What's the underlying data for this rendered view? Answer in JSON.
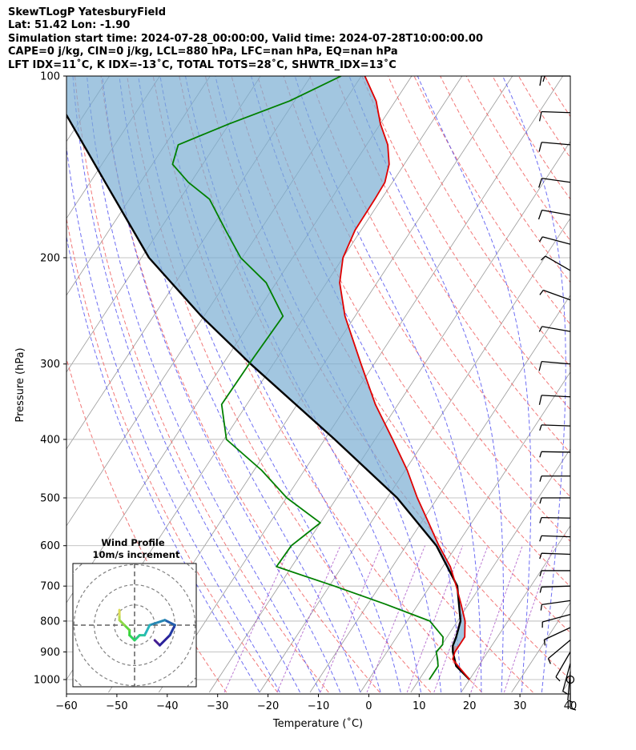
{
  "header": {
    "line1": "SkewTLogP YatesburyField",
    "line2": "Lat: 51.42   Lon: -1.90",
    "line3": "Simulation start time: 2024-07-28_00:00:00, Valid time: 2024-07-28T10:00:00.00",
    "line4": "CAPE=0 j/kg, CIN=0 j/kg, LCL=880 hPa, LFC=nan hPa, EQ=nan hPa",
    "line5": "LFT IDX=11˚C, K IDX=-13˚C, TOTAL TOTS=28˚C, SHWTR_IDX=13˚C"
  },
  "chart_data": {
    "type": "skewt-logp",
    "xlabel": "Temperature (˚C)",
    "ylabel": "Pressure (hPa)",
    "xlim": [
      -60,
      40
    ],
    "ylim": [
      1050,
      100
    ],
    "x_ticks": [
      -60,
      -50,
      -40,
      -30,
      -20,
      -10,
      0,
      10,
      20,
      30,
      40
    ],
    "x_tick_labels": [
      "−60",
      "−50",
      "−40",
      "−30",
      "−20",
      "−10",
      "0",
      "10",
      "20",
      "30",
      "40"
    ],
    "y_ticks": [
      1000,
      900,
      800,
      700,
      600,
      500,
      400,
      300,
      200,
      100
    ],
    "y_tick_labels": [
      "1000",
      "900",
      "800",
      "700",
      "600",
      "500",
      "400",
      "300",
      "200",
      "100"
    ],
    "grid": true,
    "colors": {
      "temperature": "#e00000",
      "dewpoint": "#008000",
      "parcel": "#000000",
      "cape_fill": "#7aaed3",
      "dry_adiabat": "#f06060",
      "moist_adiabat": "#4a4af0",
      "mixing_ratio": "#a040c0",
      "isotherm": "#999999"
    },
    "temperature": {
      "p": [
        1000,
        950,
        925,
        900,
        875,
        850,
        800,
        750,
        700,
        650,
        600,
        550,
        500,
        450,
        400,
        350,
        300,
        250,
        220,
        200,
        180,
        160,
        150,
        140,
        130,
        120,
        110,
        100
      ],
      "t": [
        20,
        16,
        14,
        13.5,
        13.5,
        13.5,
        11.5,
        8.5,
        5.2,
        1.5,
        -3.5,
        -8.5,
        -14,
        -19.6,
        -26.5,
        -34.5,
        -42.6,
        -52,
        -57.4,
        -60,
        -61.2,
        -61.3,
        -61.5,
        -63,
        -65.8,
        -70,
        -73.8,
        -79.3
      ]
    },
    "dewpoint": {
      "p": [
        1000,
        950,
        925,
        900,
        875,
        850,
        800,
        750,
        700,
        650,
        600,
        550,
        500,
        450,
        400,
        350,
        300,
        250,
        220,
        200,
        180,
        160,
        150,
        140,
        130,
        120,
        110,
        100
      ],
      "t": [
        12,
        12,
        11,
        9.8,
        10.1,
        9.2,
        4.5,
        -6.5,
        -19,
        -33,
        -32.8,
        -30,
        -39.9,
        -48.5,
        -59.5,
        -65,
        -64.8,
        -64.3,
        -72,
        -80.3,
        -86.9,
        -94.1,
        -100.5,
        -106,
        -107.4,
        -100,
        -91,
        -84
      ]
    },
    "parcel": {
      "p": [
        1000,
        950,
        900,
        880,
        850,
        800,
        700,
        600,
        500,
        400,
        300,
        250,
        200,
        150,
        100
      ],
      "t": [
        20,
        15.6,
        13.1,
        12.3,
        11.8,
        10.6,
        5.4,
        -4,
        -18,
        -38,
        -64.5,
        -80.5,
        -98.5,
        -117,
        -143
      ]
    },
    "wind_profile": {
      "title": "Wind Profile",
      "subtitle": "10m/s increment",
      "ring_step": 10,
      "u": [
        4,
        5,
        7,
        8,
        6,
        3,
        2,
        1,
        0,
        -1,
        -1,
        -2,
        -3,
        -3,
        -3
      ],
      "v": [
        -3,
        -4,
        -2,
        0,
        1,
        0,
        -2,
        -2,
        -3,
        -2,
        -1,
        0,
        1,
        2,
        3
      ]
    },
    "wind_barbs": {
      "p": [
        1000,
        970,
        940,
        900,
        860,
        820,
        780,
        740,
        700,
        660,
        620,
        580,
        540,
        500,
        460,
        420,
        380,
        340,
        300,
        265,
        235,
        210,
        190,
        170,
        150,
        130,
        115,
        100
      ],
      "direction_deg": [
        180,
        185,
        195,
        210,
        230,
        245,
        255,
        262,
        268,
        270,
        272,
        272,
        271,
        270,
        270,
        271,
        272,
        273,
        275,
        280,
        290,
        300,
        285,
        280,
        278,
        275,
        272,
        270
      ],
      "speed_kt": [
        3,
        4,
        5,
        6,
        7,
        7,
        6,
        5,
        5,
        5,
        5,
        5,
        6,
        6,
        7,
        7,
        7,
        8,
        8,
        6,
        5,
        5,
        7,
        8,
        9,
        10,
        12,
        14
      ]
    }
  }
}
